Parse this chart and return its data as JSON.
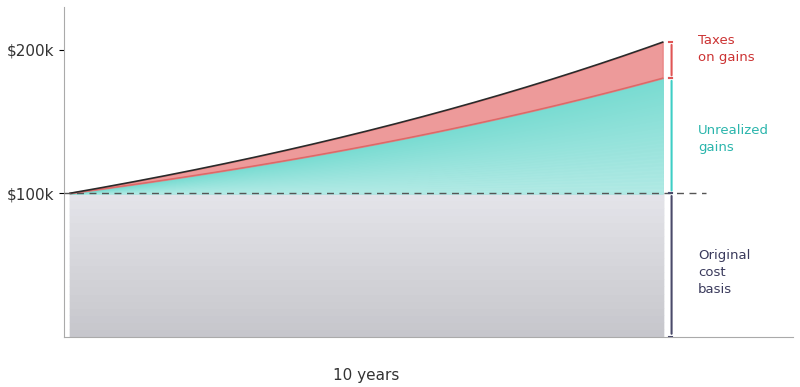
{
  "years": 10,
  "cost_basis": 100000,
  "growth_rate": 0.072,
  "tax_rate_on_gains": 0.238,
  "n_points": 300,
  "color_cost_basis_top": "#c8cdd4",
  "color_cost_basis_bottom": "#e8eaed",
  "color_gains_top": "#4ecdc4",
  "color_gains_bottom": "#a8eeea",
  "color_taxes": "#e87878",
  "color_taxes_fill": "#e88080",
  "color_dashed_line": "#555555",
  "color_axis": "#333333",
  "color_bracket_teal": "#4ecdc4",
  "color_bracket_gray": "#555566",
  "label_taxes": "Taxes\non gains",
  "label_gains": "Unrealized\ngains",
  "label_basis": "Original\ncost\nbasis",
  "label_years": "10 years",
  "ytick_200k": "$200k",
  "ytick_100k": "$100k",
  "ymin": 0,
  "ymax": 230000,
  "figsize": [
    8.0,
    3.87
  ],
  "dpi": 100
}
